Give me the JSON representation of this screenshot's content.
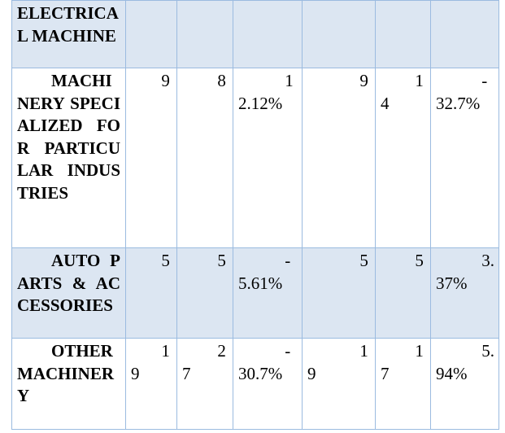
{
  "table": {
    "rows": [
      [
        "ELECTRICAL MACHINE",
        "",
        "",
        "",
        "",
        "",
        ""
      ],
      [
        "MACHINERY SPECIALIZED FOR PARTICULAR INDUSTRIES",
        "9",
        "8",
        "12.12%",
        "9",
        "14",
        "-32.7%"
      ],
      [
        "AUTO PARTS & ACCESSORIES",
        "5",
        "5",
        "-5.61%",
        "5",
        "5",
        "3.37%"
      ],
      [
        "OTHER MACHINERY",
        "19",
        "27",
        "-30.7%",
        "19",
        "17",
        "5.94%"
      ]
    ]
  }
}
